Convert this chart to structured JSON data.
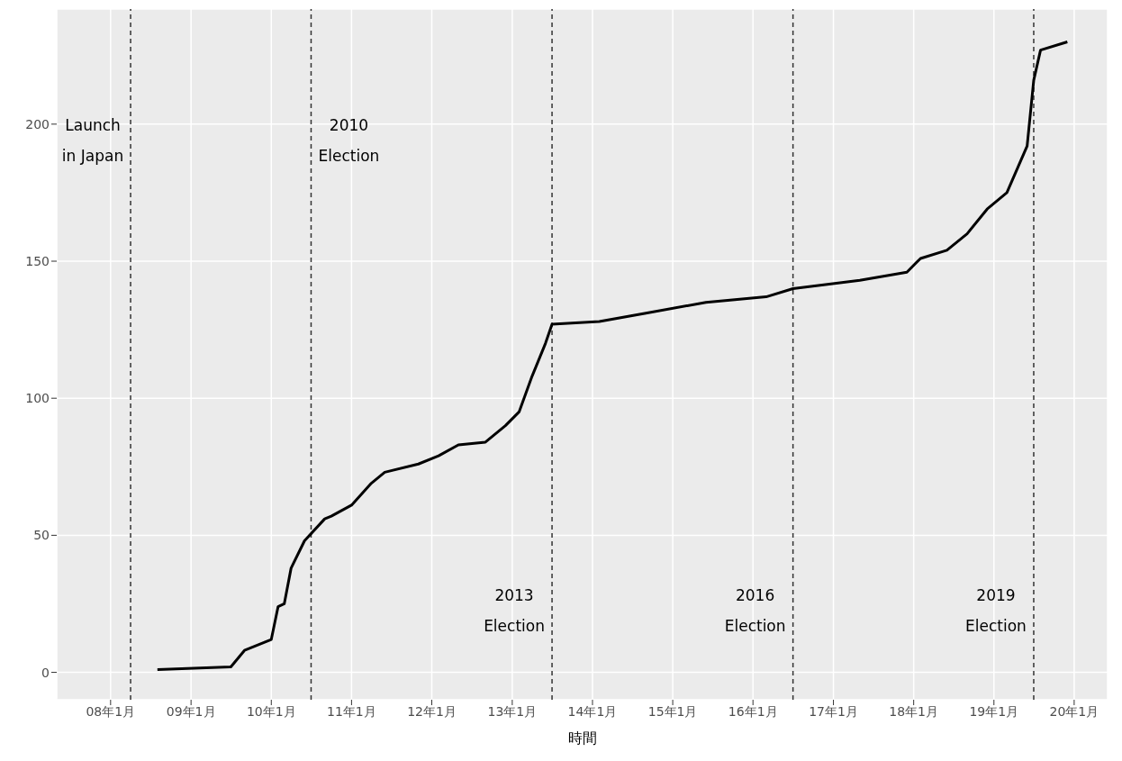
{
  "chart_data": {
    "type": "line",
    "xlabel": "時間",
    "x": [
      "2008-08",
      "2009-07",
      "2009-09",
      "2009-11",
      "2010-01",
      "2010-02",
      "2010-03",
      "2010-04",
      "2010-06",
      "2010-09",
      "2010-10",
      "2011-01",
      "2011-04",
      "2011-06",
      "2011-11",
      "2012-02",
      "2012-05",
      "2012-09",
      "2012-12",
      "2013-02",
      "2013-04",
      "2013-06",
      "2013-07",
      "2014-02",
      "2014-09",
      "2015-06",
      "2016-03",
      "2016-07",
      "2017-05",
      "2017-12",
      "2018-02",
      "2018-06",
      "2018-09",
      "2018-12",
      "2019-03",
      "2019-06",
      "2019-07",
      "2019-08",
      "2019-12"
    ],
    "series": [
      {
        "color": "#000000",
        "values": [
          1,
          2,
          8,
          10,
          12,
          24,
          25,
          38,
          48,
          56,
          57,
          61,
          69,
          73,
          76,
          79,
          83,
          84,
          90,
          95,
          108,
          120,
          127,
          128,
          131,
          135,
          137,
          140,
          143,
          146,
          151,
          154,
          160,
          169,
          175,
          192,
          216,
          227,
          230
        ]
      }
    ],
    "xlim": [
      "2007-05",
      "2020-06"
    ],
    "xticks": [
      {
        "value": "2008-01",
        "label": "08年1月"
      },
      {
        "value": "2009-01",
        "label": "09年1月"
      },
      {
        "value": "2010-01",
        "label": "10年1月"
      },
      {
        "value": "2011-01",
        "label": "11年1月"
      },
      {
        "value": "2012-01",
        "label": "12年1月"
      },
      {
        "value": "2013-01",
        "label": "13年1月"
      },
      {
        "value": "2014-01",
        "label": "14年1月"
      },
      {
        "value": "2015-01",
        "label": "15年1月"
      },
      {
        "value": "2016-01",
        "label": "16年1月"
      },
      {
        "value": "2017-01",
        "label": "17年1月"
      },
      {
        "value": "2018-01",
        "label": "18年1月"
      },
      {
        "value": "2019-01",
        "label": "19年1月"
      },
      {
        "value": "2020-01",
        "label": "20年1月"
      }
    ],
    "ylim": [
      -10,
      242
    ],
    "yticks": [
      0,
      50,
      100,
      150,
      200
    ],
    "grid": true,
    "legend": false,
    "marker": "none",
    "line_style": "solid",
    "ref_lines": [
      {
        "axis": "x",
        "value": "2008-04",
        "label": "Launch in Japan",
        "color": "#333333",
        "line_style": "dashed"
      },
      {
        "axis": "x",
        "value": "2010-07",
        "label": "2010 Election",
        "color": "#333333",
        "line_style": "dashed"
      },
      {
        "axis": "x",
        "value": "2013-07",
        "label": "2013 Election",
        "color": "#333333",
        "line_style": "dashed"
      },
      {
        "axis": "x",
        "value": "2016-07",
        "label": "2016 Election",
        "color": "#333333",
        "line_style": "dashed"
      },
      {
        "axis": "x",
        "value": "2019-07",
        "label": "2019 Election",
        "color": "#333333",
        "line_style": "dashed"
      }
    ]
  }
}
